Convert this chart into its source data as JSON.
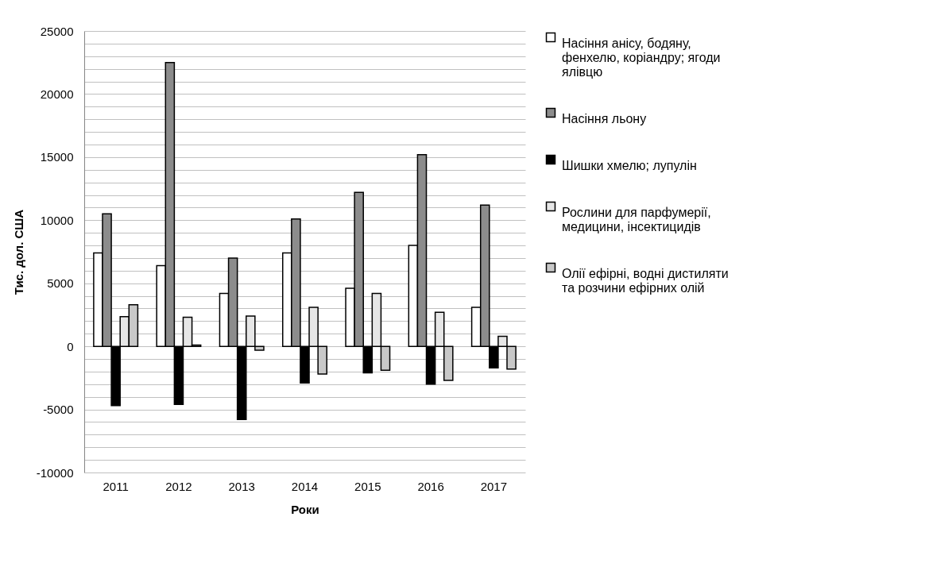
{
  "chart_data": {
    "type": "bar",
    "xlabel": "Роки",
    "ylabel": "Тис. дол. США",
    "categories": [
      "2011",
      "2012",
      "2013",
      "2014",
      "2015",
      "2016",
      "2017"
    ],
    "series": [
      {
        "name": "Насіння анісу, бодяну, фенхелю, коріандру; ягоди ялівцю",
        "color": "#ffffff",
        "values": [
          7400,
          6400,
          4200,
          7400,
          4600,
          8000,
          3100
        ]
      },
      {
        "name": "Насіння льону",
        "color": "#8c8c8c",
        "values": [
          10500,
          22500,
          7000,
          10100,
          12200,
          15200,
          11200
        ]
      },
      {
        "name": "Шишки хмелю; лупулін",
        "color": "#000000",
        "values": [
          -4700,
          -4600,
          -5800,
          -2900,
          -2100,
          -3000,
          -1700
        ]
      },
      {
        "name": "Рослини для парфумерії, медицини, інсектицидів",
        "color": "#e6e6e6",
        "values": [
          2350,
          2300,
          2400,
          3100,
          4200,
          2700,
          800
        ]
      },
      {
        "name": "Олії ефірні, водні дистиляти та розчини ефірних олій",
        "color": "#c8c8c8",
        "values": [
          3300,
          100,
          -300,
          -2200,
          -1900,
          -2700,
          -1800
        ]
      }
    ],
    "ylim": [
      -10000,
      25000
    ],
    "yticks": [
      -10000,
      {
        "value": -9000,
        "label": null
      },
      {
        "value": -8000,
        "label": null
      },
      {
        "value": -7000,
        "label": null
      },
      {
        "value": -6000,
        "label": null
      },
      -5000,
      {
        "value": -4000,
        "label": null
      },
      {
        "value": -3000,
        "label": null
      },
      {
        "value": -2000,
        "label": null
      },
      {
        "value": -1000,
        "label": null
      },
      0,
      {
        "value": 1000,
        "label": null
      },
      {
        "value": 2000,
        "label": null
      },
      {
        "value": 3000,
        "label": null
      },
      {
        "value": 4000,
        "label": null
      },
      5000,
      {
        "value": 6000,
        "label": null
      },
      {
        "value": 7000,
        "label": null
      },
      {
        "value": 8000,
        "label": null
      },
      {
        "value": 9000,
        "label": null
      },
      10000,
      {
        "value": 11000,
        "label": null
      },
      {
        "value": 12000,
        "label": null
      },
      {
        "value": 13000,
        "label": null
      },
      {
        "value": 14000,
        "label": null
      },
      15000,
      {
        "value": 16000,
        "label": null
      },
      {
        "value": 17000,
        "label": null
      },
      {
        "value": 18000,
        "label": null
      },
      {
        "value": 19000,
        "label": null
      },
      20000,
      {
        "value": 21000,
        "label": null
      },
      {
        "value": 22000,
        "label": null
      },
      {
        "value": 23000,
        "label": null
      },
      {
        "value": 24000,
        "label": null
      },
      25000
    ],
    "grid": "y",
    "legend": "right"
  }
}
